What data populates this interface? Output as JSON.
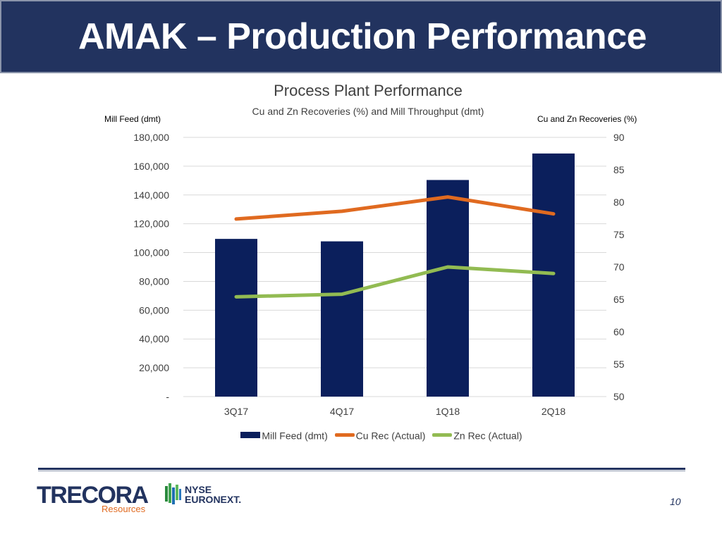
{
  "slide": {
    "title": "AMAK – Production Performance",
    "page_number": "10"
  },
  "colors": {
    "title_bar": "#22335f",
    "bar": "#0b1f5c",
    "cu_line": "#e06a20",
    "zn_line": "#92bb52"
  },
  "chart_data": {
    "type": "bar",
    "title": "Process Plant Performance",
    "subtitle": "Cu and Zn Recoveries (%) and Mill Throughput (dmt)",
    "ylabel": "Mill Feed (dmt)",
    "y2label": "Cu and Zn Recoveries (%)",
    "categories": [
      "3Q17",
      "4Q17",
      "1Q18",
      "2Q18"
    ],
    "ylim": [
      0,
      180000
    ],
    "y2lim": [
      50,
      90
    ],
    "y_ticks": [
      "-",
      "20,000",
      "40,000",
      "60,000",
      "80,000",
      "100,000",
      "120,000",
      "140,000",
      "160,000",
      "180,000"
    ],
    "y_tick_values": [
      0,
      20000,
      40000,
      60000,
      80000,
      100000,
      120000,
      140000,
      160000,
      180000
    ],
    "y2_ticks": [
      "50",
      "55",
      "60",
      "65",
      "70",
      "75",
      "80",
      "85",
      "90"
    ],
    "y2_tick_values": [
      50,
      55,
      60,
      65,
      70,
      75,
      80,
      85,
      90
    ],
    "grid": true,
    "legend_position": "bottom",
    "series": [
      {
        "name": "Mill Feed (dmt)",
        "type": "bar",
        "axis": "left",
        "values": [
          109500,
          107800,
          150400,
          168800
        ]
      },
      {
        "name": "Cu Rec (Actual)",
        "type": "line",
        "axis": "right",
        "values": [
          77.4,
          78.6,
          80.8,
          78.2
        ]
      },
      {
        "name": "Zn Rec (Actual)",
        "type": "line",
        "axis": "right",
        "values": [
          65.4,
          65.8,
          70.0,
          69.0
        ]
      }
    ]
  },
  "logos": {
    "trecora_word": "TRECORA",
    "trecora_sub": "Resources",
    "nyse_line1": "NYSE",
    "nyse_line2": "EURONEXT."
  }
}
